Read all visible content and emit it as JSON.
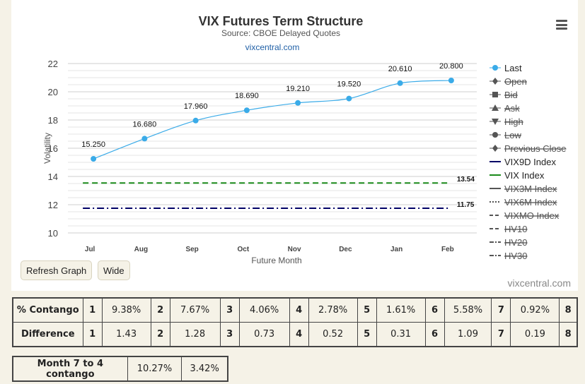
{
  "chart_data": {
    "type": "line",
    "title": "VIX Futures Term Structure",
    "subtitle": "Source: CBOE Delayed Quotes",
    "credit_top": "vixcentral.com",
    "credit_bottom": "vixcentral.com",
    "xlabel": "Future Month",
    "ylabel": "Volatility",
    "ylim": [
      10,
      22
    ],
    "yticks": [
      "10",
      "12",
      "14",
      "16",
      "18",
      "20",
      "22"
    ],
    "categories": [
      "Jul",
      "Aug",
      "Sep",
      "Oct",
      "Nov",
      "Dec",
      "Jan",
      "Feb"
    ],
    "grid": true,
    "legend_position": "right",
    "series": [
      {
        "name": "Last",
        "values": [
          15.25,
          16.68,
          17.96,
          18.69,
          19.21,
          19.52,
          20.61,
          20.8
        ],
        "labels": [
          "15.250",
          "16.680",
          "17.960",
          "18.690",
          "19.210",
          "19.520",
          "20.610",
          "20.800"
        ],
        "color": "#3aabe8"
      },
      {
        "name": "VIX Index",
        "value": 13.54,
        "label": "13.54",
        "color": "#1a8a1a"
      },
      {
        "name": "VIX9D Index",
        "value": 11.75,
        "label": "11.75",
        "color": "#000066"
      }
    ],
    "legend": [
      {
        "name": "Last",
        "symbol": "circle",
        "color": "#3aabe8",
        "line": "solid",
        "hidden": false
      },
      {
        "name": "Open",
        "symbol": "diamond",
        "color": "#555",
        "line": "solid",
        "hidden": true
      },
      {
        "name": "Bid",
        "symbol": "square",
        "color": "#555",
        "line": "solid",
        "hidden": true
      },
      {
        "name": "Ask",
        "symbol": "triangle",
        "color": "#555",
        "line": "solid",
        "hidden": true
      },
      {
        "name": "High",
        "symbol": "triangle-down",
        "color": "#555",
        "line": "solid",
        "hidden": true
      },
      {
        "name": "Low",
        "symbol": "circle",
        "color": "#555",
        "line": "solid",
        "hidden": true
      },
      {
        "name": "Previous Close",
        "symbol": "diamond",
        "color": "#555",
        "line": "solid",
        "hidden": true
      },
      {
        "name": "VIX9D Index",
        "symbol": "none",
        "color": "#000066",
        "line": "solid",
        "hidden": false
      },
      {
        "name": "VIX Index",
        "symbol": "none",
        "color": "#1a8a1a",
        "line": "solid",
        "hidden": false
      },
      {
        "name": "VIX3M Index",
        "symbol": "none",
        "color": "#555",
        "line": "solid",
        "hidden": true
      },
      {
        "name": "VIX6M Index",
        "symbol": "none",
        "color": "#555",
        "line": "dot",
        "hidden": true
      },
      {
        "name": "VIXMO Index",
        "symbol": "none",
        "color": "#555",
        "line": "dash",
        "hidden": true
      },
      {
        "name": "HV10",
        "symbol": "none",
        "color": "#555",
        "line": "dash",
        "hidden": true
      },
      {
        "name": "HV20",
        "symbol": "none",
        "color": "#555",
        "line": "dashdot",
        "hidden": true
      },
      {
        "name": "HV30",
        "symbol": "none",
        "color": "#555",
        "line": "dashdot",
        "hidden": true
      }
    ]
  },
  "buttons": {
    "refresh": "Refresh Graph",
    "wide": "Wide"
  },
  "contango_table": {
    "rows": [
      {
        "label": "% Contango",
        "cells": [
          [
            "1",
            "9.38%"
          ],
          [
            "2",
            "7.67%"
          ],
          [
            "3",
            "4.06%"
          ],
          [
            "4",
            "2.78%"
          ],
          [
            "5",
            "1.61%"
          ],
          [
            "6",
            "5.58%"
          ],
          [
            "7",
            "0.92%"
          ],
          [
            "8",
            ""
          ]
        ]
      },
      {
        "label": "Difference",
        "cells": [
          [
            "1",
            "1.43"
          ],
          [
            "2",
            "1.28"
          ],
          [
            "3",
            "0.73"
          ],
          [
            "4",
            "0.52"
          ],
          [
            "5",
            "0.31"
          ],
          [
            "6",
            "1.09"
          ],
          [
            "7",
            "0.19"
          ],
          [
            "8",
            ""
          ]
        ]
      }
    ]
  },
  "month_table": {
    "label": "Month 7 to 4 contango",
    "values": [
      "10.27%",
      "3.42%"
    ]
  }
}
